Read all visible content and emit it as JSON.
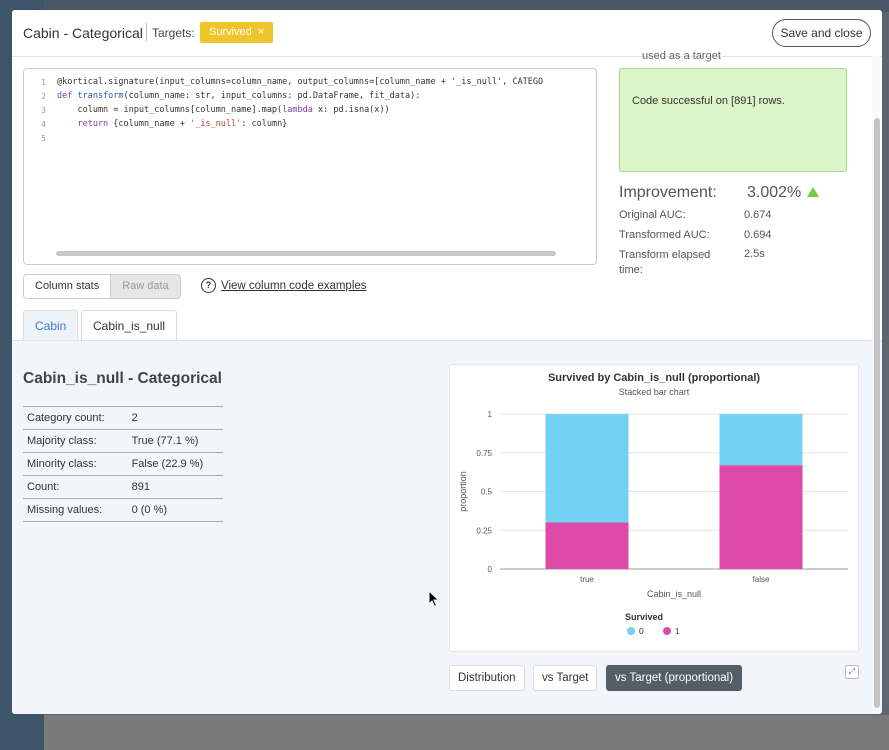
{
  "header": {
    "title": "Cabin - Categorical",
    "targets_label": "Targets:",
    "target_badge": "Survived",
    "target_badge_close": "×",
    "save_label": "Save and close"
  },
  "code": {
    "line_numbers": [
      "1",
      "2",
      "3",
      "4",
      "5"
    ],
    "line1": "@kortical.signature(input_columns=column_name, output_columns=[column_name + '_is_null', CATEGO",
    "line2_kw": "def",
    "line2_name": " transform",
    "line2_rest": "(column_name: str, input_columns: pd.DataFrame, fit_data):",
    "line3_pre": "    column = input_columns[column_name].map(",
    "line3_kw": "lambda",
    "line3_post": " x: pd.isna(x))",
    "line4_kw": "    return",
    "line4_pre": " {column_name + ",
    "line4_str": "'_is_null'",
    "line4_post": ": column}"
  },
  "partial_text_top": "used as a target",
  "result": {
    "message": "Code successful on [891] rows."
  },
  "improvement": {
    "label": "Improvement:",
    "value": "3.002%",
    "trend": "up",
    "arrow_color": "#7ac943"
  },
  "metrics": [
    {
      "label": "Original AUC:",
      "value": "0.674"
    },
    {
      "label": "Transformed AUC:",
      "value": "0.694"
    },
    {
      "label": "Transform elapsed time:",
      "value": "2.5s"
    }
  ],
  "toggle": {
    "column_stats": "Column stats",
    "raw_data": "Raw data"
  },
  "help": {
    "icon": "?",
    "link": "View column code examples"
  },
  "tabs": [
    {
      "label": "Cabin"
    },
    {
      "label": "Cabin_is_null"
    }
  ],
  "category_panel": {
    "title": "Cabin_is_null - Categorical",
    "stats": [
      {
        "label": "Category count:",
        "value": "2"
      },
      {
        "label": "Majority class:",
        "value": "True (77.1 %)"
      },
      {
        "label": "Minority class:",
        "value": "False (22.9 %)"
      },
      {
        "label": "Count:",
        "value": "891"
      },
      {
        "label": "Missing values:",
        "value": "0 (0 %)"
      }
    ]
  },
  "chart_buttons": {
    "distribution": "Distribution",
    "vs_target": "vs Target",
    "vs_target_prop": "vs Target (proportional)"
  },
  "expand_icon": "⤢",
  "colors": {
    "series0": "#73d2f3",
    "series1": "#de4aa8",
    "badge": "#f0c42b",
    "success_bg": "#dcf5c8"
  },
  "chart_data": {
    "type": "bar",
    "stacked": true,
    "title": "Survived by Cabin_is_null (proportional)",
    "subtitle": "Stacked bar chart",
    "xlabel": "Cabin_is_null",
    "ylabel": "proportion",
    "categories": [
      "true",
      "false"
    ],
    "ylim": [
      0,
      1
    ],
    "yticks": [
      0,
      0.25,
      0.5,
      0.75,
      1
    ],
    "ytick_labels": [
      "0",
      "0.25",
      "0.5",
      "0.75",
      "1"
    ],
    "legend_title": "Survived",
    "legend_position": "bottom",
    "grid": true,
    "series": [
      {
        "name": "1",
        "values": [
          0.3,
          0.67
        ],
        "color": "#de4aa8"
      },
      {
        "name": "0",
        "values": [
          0.7,
          0.33
        ],
        "color": "#73d2f3"
      }
    ],
    "legend_order": [
      "0",
      "1"
    ]
  }
}
